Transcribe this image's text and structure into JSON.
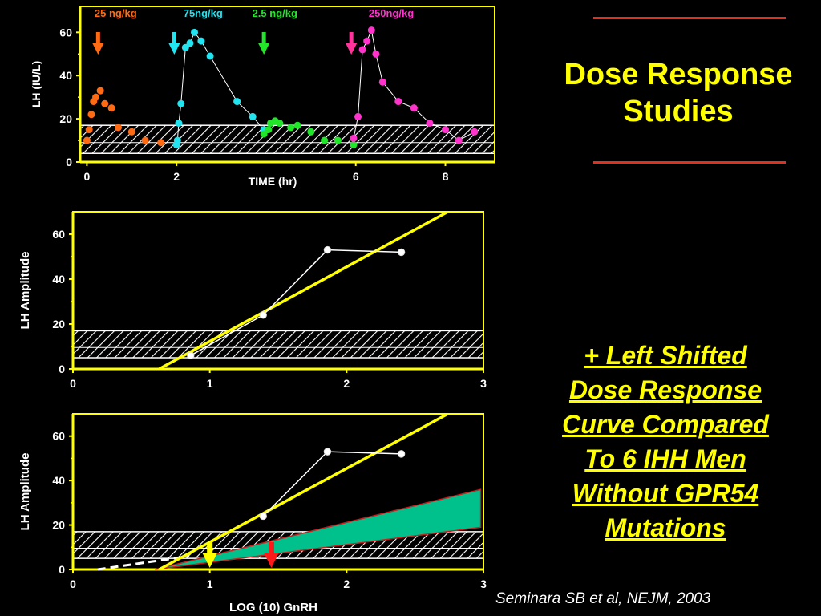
{
  "slide": {
    "title_line1": "Dose Response",
    "title_line2": "Studies",
    "subtitle_lines": [
      "+ Left Shifted",
      "Dose Response",
      "Curve Compared",
      "To 6 IHH Men",
      "Without GPR54",
      "Mutations"
    ],
    "citation": "Seminara SB et al, NEJM, 2003",
    "colors": {
      "background": "#000000",
      "title": "#ffff00",
      "rule": "#e0301e",
      "axes": "#ffff00",
      "fit_line": "#ffff00",
      "wedge": "#00c08c"
    }
  },
  "chart_data": [
    {
      "type": "scatter",
      "title": "",
      "xlabel": "TIME (hr)",
      "ylabel": "LH (IU/L)",
      "xlim": [
        -0.15,
        9.1
      ],
      "ylim": [
        0,
        72
      ],
      "x_ticks": [
        0,
        2,
        6,
        8
      ],
      "y_ticks": [
        0,
        20,
        40,
        60
      ],
      "normal_range_band": [
        4,
        17
      ],
      "dose_labels": [
        {
          "text": "25 ng/kg",
          "x": 0.75,
          "color": "#ff6a13"
        },
        {
          "text": "75ng/kg",
          "x": 2.7,
          "color": "#22e3f0"
        },
        {
          "text": "2.5 ng/kg",
          "x": 4.3,
          "color": "#22e62a"
        },
        {
          "text": "250ng/kg",
          "x": 6.9,
          "color": "#ff33cc"
        }
      ],
      "dose_arrows": [
        {
          "x": 0.25,
          "color": "#ff6a13"
        },
        {
          "x": 1.95,
          "color": "#22e3f0"
        },
        {
          "x": 3.95,
          "color": "#22e62a"
        },
        {
          "x": 5.9,
          "color": "#ff3399"
        }
      ],
      "series": [
        {
          "name": "25 ng/kg",
          "color": "#ff6a13",
          "connected": false,
          "x": [
            0.0,
            0.05,
            0.1,
            0.15,
            0.2,
            0.3,
            0.4,
            0.55,
            0.7,
            1.0,
            1.3,
            1.65
          ],
          "y": [
            10,
            15,
            22,
            28,
            30,
            33,
            27,
            25,
            16,
            14,
            10,
            9
          ]
        },
        {
          "name": "75ng/kg",
          "color": "#22e3f0",
          "connected": true,
          "x": [
            2.0,
            2.02,
            2.05,
            2.1,
            2.2,
            2.3,
            2.4,
            2.55,
            2.75,
            3.35,
            3.7,
            3.95
          ],
          "y": [
            8,
            10,
            18,
            27,
            53,
            55,
            60,
            56,
            49,
            28,
            21,
            15
          ]
        },
        {
          "name": "2.5 ng/kg",
          "color": "#22e62a",
          "connected": false,
          "x": [
            3.95,
            4.05,
            4.1,
            4.2,
            4.3,
            4.55,
            4.7,
            5.0,
            5.3,
            5.6,
            5.95
          ],
          "y": [
            13,
            15,
            18,
            19,
            18,
            16,
            17,
            14,
            10,
            10,
            8
          ]
        },
        {
          "name": "250ng/kg",
          "color": "#ff33cc",
          "connected": true,
          "x": [
            5.95,
            6.05,
            6.15,
            6.25,
            6.35,
            6.45,
            6.6,
            6.95,
            7.3,
            7.65,
            8.0,
            8.3,
            8.65
          ],
          "y": [
            11,
            21,
            52,
            56,
            61,
            50,
            37,
            28,
            25,
            18,
            15,
            10,
            14
          ]
        }
      ]
    },
    {
      "type": "line",
      "title": "",
      "xlabel": "",
      "ylabel": "LH Amplitude",
      "xlim": [
        0,
        3
      ],
      "ylim": [
        0,
        70
      ],
      "x_ticks": [
        0,
        1,
        2,
        3
      ],
      "y_ticks": [
        0,
        20,
        40,
        60
      ],
      "normal_range_band": [
        5,
        17
      ],
      "observed": {
        "color": "#ffffff",
        "x": [
          0.86,
          1.39,
          1.86,
          2.4
        ],
        "y": [
          6,
          24,
          53,
          52
        ]
      },
      "fit_line": {
        "color": "#ffff00",
        "x": [
          0.63,
          2.74
        ],
        "y": [
          0,
          70
        ]
      }
    },
    {
      "type": "line",
      "title": "",
      "xlabel": "LOG (10) GnRH",
      "ylabel": "LH Amplitude",
      "xlim": [
        0,
        3
      ],
      "ylim": [
        0,
        70
      ],
      "x_ticks": [
        0,
        1,
        2,
        3
      ],
      "y_ticks": [
        0,
        20,
        40,
        60
      ],
      "normal_range_band": [
        5,
        17
      ],
      "observed": {
        "color": "#ffffff",
        "x": [
          1.39,
          1.86,
          2.4
        ],
        "y": [
          24,
          53,
          52
        ]
      },
      "fit_line": {
        "color": "#ffff00",
        "x": [
          0.63,
          2.74
        ],
        "y": [
          0,
          70
        ]
      },
      "dashed_line": {
        "color": "#ffffff",
        "x": [
          0.18,
          0.85
        ],
        "y": [
          0,
          6
        ]
      },
      "comparison_range": {
        "color": "#00c08c",
        "x_start": 0.6,
        "x_end": 2.98,
        "lower_end": 19,
        "upper_end": 36
      },
      "markers": [
        {
          "x": 1.0,
          "color": "#ffff00"
        },
        {
          "x": 1.45,
          "color": "#ff1a1a"
        }
      ]
    }
  ]
}
